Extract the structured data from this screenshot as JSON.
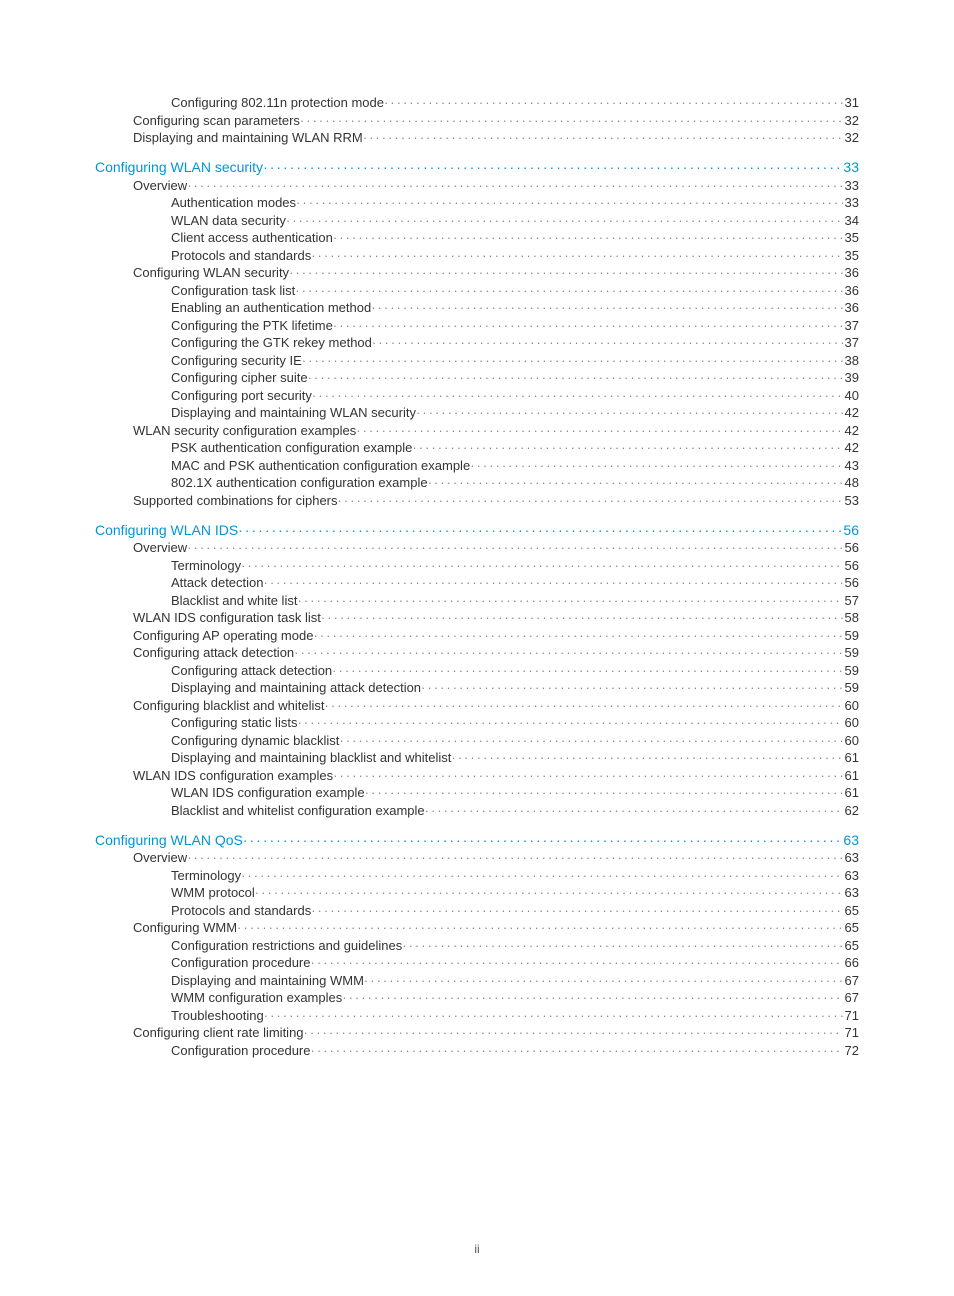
{
  "page_number_label": "ii",
  "colors": {
    "link": "#0096d6",
    "text": "#333333",
    "dots": "#888888",
    "background": "#ffffff"
  },
  "font_sizes": {
    "section": 14,
    "normal": 13,
    "pagenum": 12
  },
  "toc": [
    {
      "label": "Configuring 802.11n protection mode",
      "page": "31",
      "level": 2,
      "style": "normal",
      "gap": false
    },
    {
      "label": "Configuring scan parameters",
      "page": "32",
      "level": 1,
      "style": "normal",
      "gap": false
    },
    {
      "label": "Displaying and maintaining WLAN RRM",
      "page": "32",
      "level": 1,
      "style": "normal",
      "gap": false
    },
    {
      "label": "Configuring WLAN security",
      "page": "33",
      "level": 0,
      "style": "section",
      "gap": true
    },
    {
      "label": "Overview",
      "page": "33",
      "level": 1,
      "style": "normal",
      "gap": false
    },
    {
      "label": "Authentication modes",
      "page": "33",
      "level": 2,
      "style": "normal",
      "gap": false
    },
    {
      "label": "WLAN data security",
      "page": "34",
      "level": 2,
      "style": "normal",
      "gap": false
    },
    {
      "label": "Client access authentication",
      "page": "35",
      "level": 2,
      "style": "normal",
      "gap": false
    },
    {
      "label": "Protocols and standards",
      "page": "35",
      "level": 2,
      "style": "normal",
      "gap": false
    },
    {
      "label": "Configuring WLAN security",
      "page": "36",
      "level": 1,
      "style": "normal",
      "gap": false
    },
    {
      "label": "Configuration task list",
      "page": "36",
      "level": 2,
      "style": "normal",
      "gap": false
    },
    {
      "label": "Enabling an authentication method",
      "page": "36",
      "level": 2,
      "style": "normal",
      "gap": false
    },
    {
      "label": "Configuring the PTK lifetime",
      "page": "37",
      "level": 2,
      "style": "normal",
      "gap": false
    },
    {
      "label": "Configuring the GTK rekey method",
      "page": "37",
      "level": 2,
      "style": "normal",
      "gap": false
    },
    {
      "label": "Configuring security IE",
      "page": "38",
      "level": 2,
      "style": "normal",
      "gap": false
    },
    {
      "label": "Configuring cipher suite",
      "page": "39",
      "level": 2,
      "style": "normal",
      "gap": false
    },
    {
      "label": "Configuring port security",
      "page": "40",
      "level": 2,
      "style": "normal",
      "gap": false
    },
    {
      "label": "Displaying and maintaining WLAN security",
      "page": "42",
      "level": 2,
      "style": "normal",
      "gap": false
    },
    {
      "label": "WLAN security configuration examples",
      "page": "42",
      "level": 1,
      "style": "normal",
      "gap": false
    },
    {
      "label": "PSK authentication configuration example",
      "page": "42",
      "level": 2,
      "style": "normal",
      "gap": false
    },
    {
      "label": "MAC and PSK authentication configuration example",
      "page": "43",
      "level": 2,
      "style": "normal",
      "gap": false
    },
    {
      "label": "802.1X authentication configuration example",
      "page": "48",
      "level": 2,
      "style": "normal",
      "gap": false
    },
    {
      "label": "Supported combinations for ciphers",
      "page": "53",
      "level": 1,
      "style": "normal",
      "gap": false
    },
    {
      "label": "Configuring WLAN IDS",
      "page": "56",
      "level": 0,
      "style": "section",
      "gap": true
    },
    {
      "label": "Overview",
      "page": "56",
      "level": 1,
      "style": "normal",
      "gap": false
    },
    {
      "label": "Terminology",
      "page": "56",
      "level": 2,
      "style": "normal",
      "gap": false
    },
    {
      "label": "Attack detection",
      "page": "56",
      "level": 2,
      "style": "normal",
      "gap": false
    },
    {
      "label": "Blacklist and white list",
      "page": "57",
      "level": 2,
      "style": "normal",
      "gap": false
    },
    {
      "label": "WLAN IDS configuration task list",
      "page": "58",
      "level": 1,
      "style": "normal",
      "gap": false
    },
    {
      "label": "Configuring AP operating mode",
      "page": "59",
      "level": 1,
      "style": "normal",
      "gap": false
    },
    {
      "label": "Configuring attack detection",
      "page": "59",
      "level": 1,
      "style": "normal",
      "gap": false
    },
    {
      "label": "Configuring attack detection",
      "page": "59",
      "level": 2,
      "style": "normal",
      "gap": false
    },
    {
      "label": "Displaying and maintaining attack detection",
      "page": "59",
      "level": 2,
      "style": "normal",
      "gap": false
    },
    {
      "label": "Configuring blacklist and whitelist",
      "page": "60",
      "level": 1,
      "style": "normal",
      "gap": false
    },
    {
      "label": "Configuring static lists",
      "page": "60",
      "level": 2,
      "style": "normal",
      "gap": false
    },
    {
      "label": "Configuring dynamic blacklist",
      "page": "60",
      "level": 2,
      "style": "normal",
      "gap": false
    },
    {
      "label": "Displaying and maintaining blacklist and whitelist",
      "page": "61",
      "level": 2,
      "style": "normal",
      "gap": false
    },
    {
      "label": "WLAN IDS configuration examples",
      "page": "61",
      "level": 1,
      "style": "normal",
      "gap": false
    },
    {
      "label": "WLAN IDS configuration example",
      "page": "61",
      "level": 2,
      "style": "normal",
      "gap": false
    },
    {
      "label": "Blacklist and whitelist configuration example",
      "page": "62",
      "level": 2,
      "style": "normal",
      "gap": false
    },
    {
      "label": "Configuring WLAN QoS",
      "page": "63",
      "level": 0,
      "style": "section",
      "gap": true
    },
    {
      "label": "Overview",
      "page": "63",
      "level": 1,
      "style": "normal",
      "gap": false
    },
    {
      "label": "Terminology",
      "page": "63",
      "level": 2,
      "style": "normal",
      "gap": false
    },
    {
      "label": "WMM protocol",
      "page": "63",
      "level": 2,
      "style": "normal",
      "gap": false
    },
    {
      "label": "Protocols and standards",
      "page": "65",
      "level": 2,
      "style": "normal",
      "gap": false
    },
    {
      "label": "Configuring WMM",
      "page": "65",
      "level": 1,
      "style": "normal",
      "gap": false
    },
    {
      "label": "Configuration restrictions and guidelines",
      "page": "65",
      "level": 2,
      "style": "normal",
      "gap": false
    },
    {
      "label": "Configuration procedure",
      "page": "66",
      "level": 2,
      "style": "normal",
      "gap": false
    },
    {
      "label": "Displaying and maintaining WMM",
      "page": "67",
      "level": 2,
      "style": "normal",
      "gap": false
    },
    {
      "label": "WMM configuration examples",
      "page": "67",
      "level": 2,
      "style": "normal",
      "gap": false
    },
    {
      "label": "Troubleshooting",
      "page": "71",
      "level": 2,
      "style": "normal",
      "gap": false
    },
    {
      "label": "Configuring client rate limiting",
      "page": "71",
      "level": 1,
      "style": "normal",
      "gap": false
    },
    {
      "label": "Configuration procedure",
      "page": "72",
      "level": 2,
      "style": "normal",
      "gap": false
    }
  ]
}
